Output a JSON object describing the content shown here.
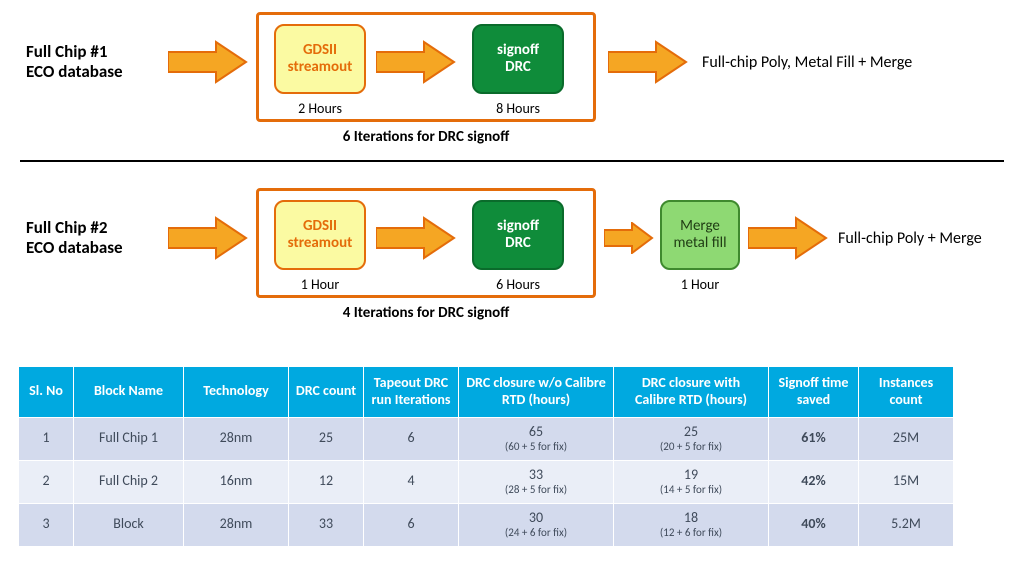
{
  "colors": {
    "arrow_fill": "#f5a623",
    "arrow_stroke": "#e46c0a",
    "group_border": "#e46c0a",
    "box_yellow_bg": "#fbfaa2",
    "box_green_bg": "#0f8c3a",
    "box_lgreen_bg": "#8ed973",
    "table_header_bg": "#00a9e0",
    "table_row_odd": "#d3daed",
    "table_row_even": "#eaeef7",
    "saved_text": "#0f8c3a"
  },
  "flow1": {
    "label_line1": "Full Chip #1",
    "label_line2": "ECO database",
    "box1": "GDSII\nstreamout",
    "box1_time": "2 Hours",
    "box2": "signoff\nDRC",
    "box2_time": "8 Hours",
    "iterations": "6 Iterations for DRC signoff",
    "output": "Full-chip Poly, Metal Fill + Merge"
  },
  "flow2": {
    "label_line1": "Full Chip #2",
    "label_line2": "ECO database",
    "box1": "GDSII\nstreamout",
    "box1_time": "1 Hour",
    "box2": "signoff\nDRC",
    "box2_time": "6 Hours",
    "box3": "Merge\nmetal fill",
    "box3_time": "1 Hour",
    "iterations": "4 Iterations for DRC signoff",
    "output": "Full-chip Poly + Merge"
  },
  "table": {
    "headers": [
      "Sl. No",
      "Block Name",
      "Technology",
      "DRC count",
      "Tapeout DRC run Iterations",
      "DRC closure w/o Calibre RTD (hours)",
      "DRC closure with Calibre RTD (hours)",
      "Signoff time saved",
      "Instances count"
    ],
    "col_widths": [
      "55px",
      "110px",
      "105px",
      "75px",
      "95px",
      "155px",
      "155px",
      "90px",
      "95px"
    ],
    "rows": [
      {
        "sl": "1",
        "block": "Full Chip 1",
        "tech": "28nm",
        "drc": "25",
        "iter": "6",
        "wo_main": "65",
        "wo_sub": "(60 + 5 for fix)",
        "w_main": "25",
        "w_sub": "(20 + 5 for fix)",
        "saved": "61%",
        "inst": "25M"
      },
      {
        "sl": "2",
        "block": "Full Chip 2",
        "tech": "16nm",
        "drc": "12",
        "iter": "4",
        "wo_main": "33",
        "wo_sub": "(28 + 5 for fix)",
        "w_main": "19",
        "w_sub": "(14 + 5 for fix)",
        "saved": "42%",
        "inst": "15M"
      },
      {
        "sl": "3",
        "block": "Block",
        "tech": "28nm",
        "drc": "33",
        "iter": "6",
        "wo_main": "30",
        "wo_sub": "(24 + 6 for fix)",
        "w_main": "18",
        "w_sub": "(12 + 6 for fix)",
        "saved": "40%",
        "inst": "5.2M"
      }
    ]
  }
}
